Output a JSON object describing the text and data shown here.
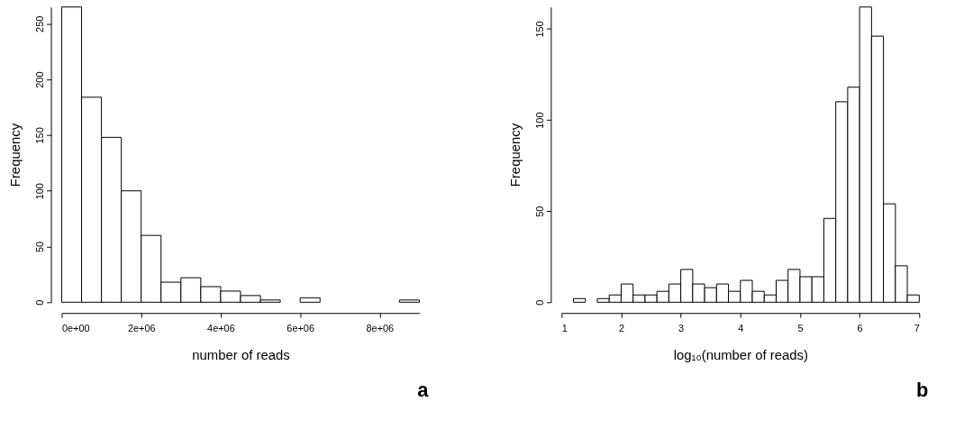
{
  "chart_data": [
    {
      "type": "histogram",
      "xlabel": "number of reads",
      "ylabel": "Frequency",
      "bins": [
        0,
        500000,
        1000000,
        1500000,
        2000000,
        2500000,
        3000000,
        3500000,
        4000000,
        4500000,
        5000000,
        5500000,
        6000000,
        6500000,
        7000000,
        7500000,
        8000000,
        8500000,
        9000000
      ],
      "values": [
        265,
        184,
        148,
        100,
        60,
        18,
        22,
        14,
        10,
        6,
        2,
        0,
        4,
        0,
        0,
        0,
        0,
        2
      ],
      "color": "#ffffff",
      "xlim": [
        0,
        9000000
      ],
      "xticks": [
        {
          "value": 0,
          "label": "0e+00"
        },
        {
          "value": 2000000,
          "label": "2e+06"
        },
        {
          "value": 4000000,
          "label": "4e+06"
        },
        {
          "value": 6000000,
          "label": "6e+06"
        },
        {
          "value": 8000000,
          "label": "8e+06"
        }
      ],
      "ylim": [
        0,
        265
      ],
      "yticks": [
        0,
        50,
        100,
        150,
        200,
        250
      ],
      "grid": false,
      "annotations": [
        "a"
      ]
    },
    {
      "type": "histogram",
      "xlabel": "log₁₀(number of reads)",
      "ylabel": "Frequency",
      "bins": [
        1.2,
        1.4,
        1.6,
        1.8,
        2.0,
        2.2,
        2.4,
        2.6,
        2.8,
        3.0,
        3.2,
        3.4,
        3.6,
        3.8,
        4.0,
        4.2,
        4.4,
        4.6,
        4.8,
        5.0,
        5.2,
        5.4,
        5.6,
        5.8,
        6.0,
        6.2,
        6.4,
        6.6,
        6.8,
        7.0
      ],
      "values": [
        2,
        0,
        2,
        4,
        10,
        4,
        4,
        6,
        10,
        18,
        10,
        8,
        10,
        6,
        12,
        6,
        4,
        12,
        18,
        14,
        14,
        46,
        110,
        118,
        162,
        146,
        54,
        20,
        4
      ],
      "color": "#ffffff",
      "xlim": [
        1,
        7
      ],
      "xticks": [
        1,
        2,
        3,
        4,
        5,
        6,
        7
      ],
      "ylim": [
        0,
        162
      ],
      "yticks": [
        0,
        50,
        100,
        150
      ],
      "grid": false,
      "annotations": [
        "b"
      ]
    }
  ]
}
